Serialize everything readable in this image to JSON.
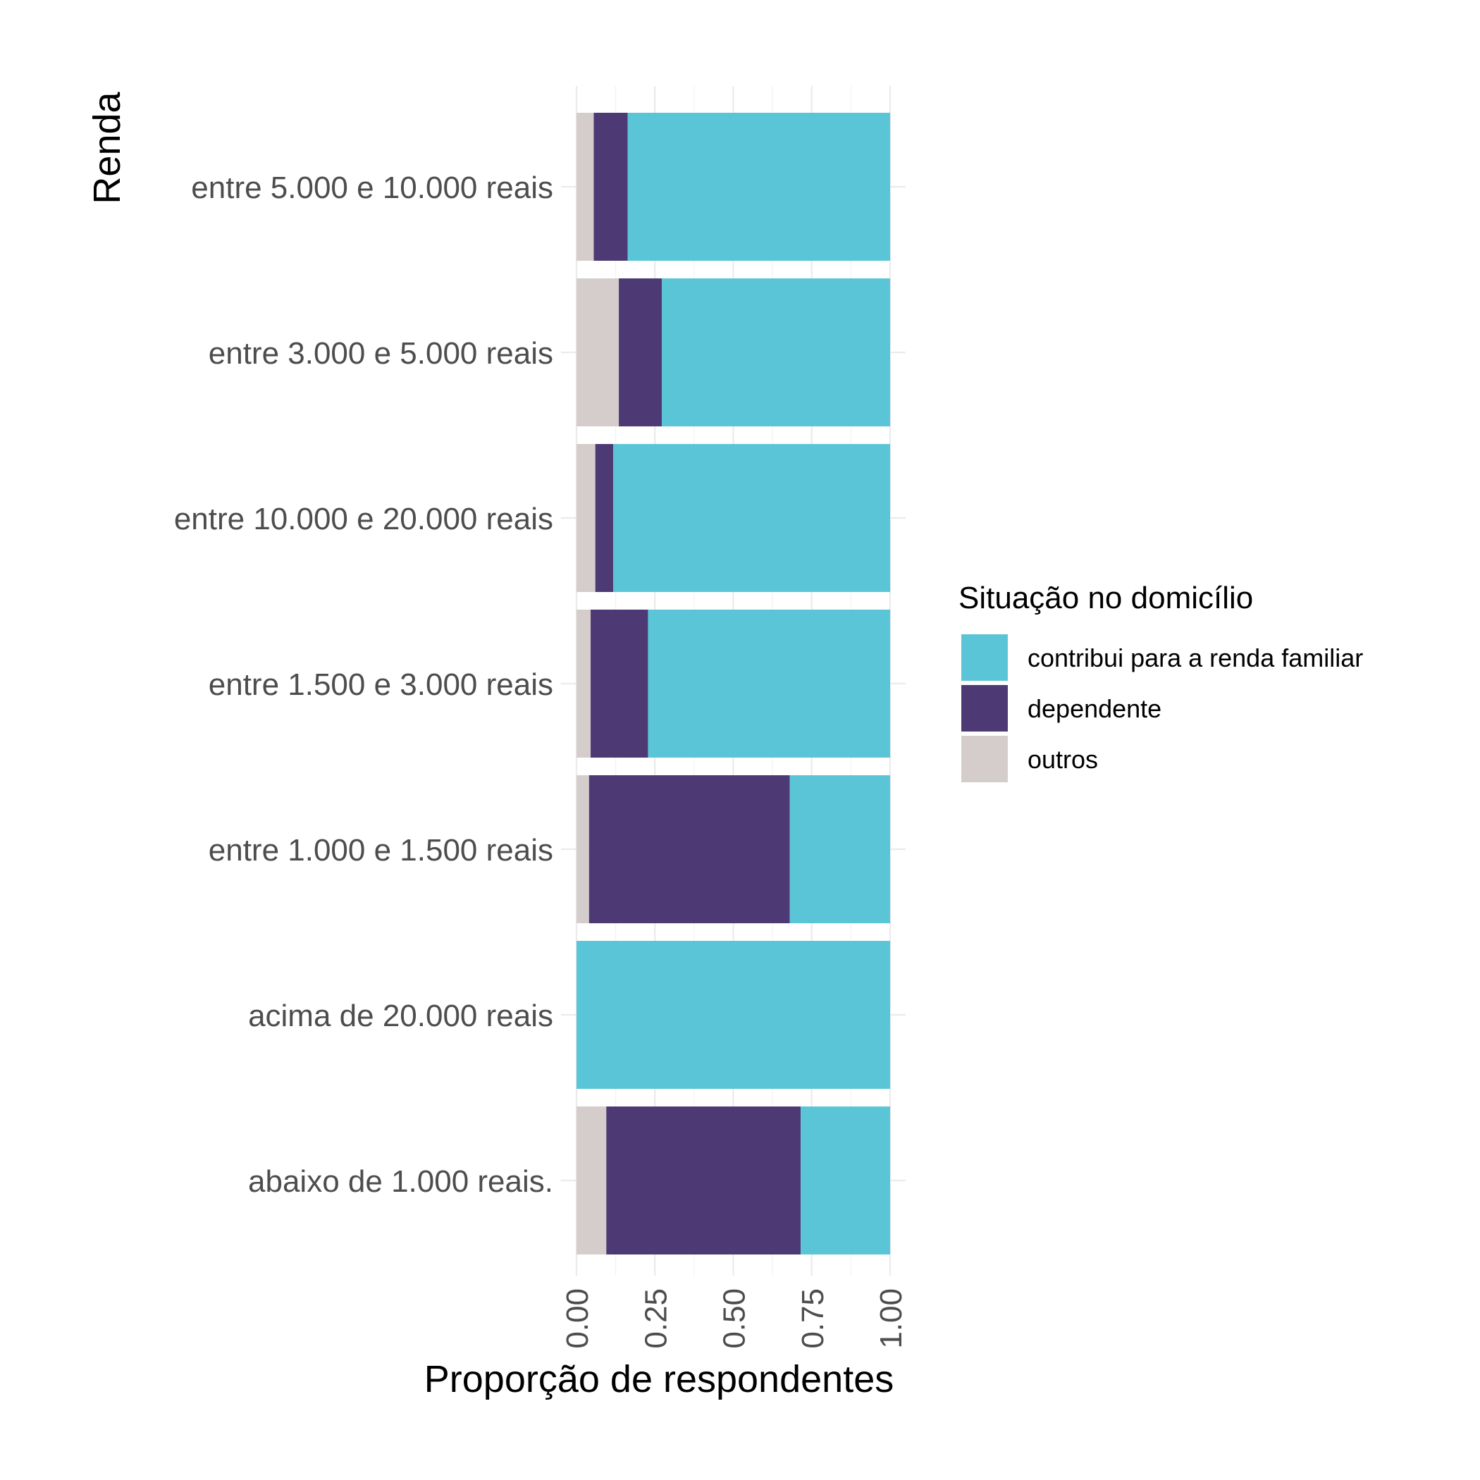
{
  "chart_data": {
    "type": "bar",
    "orientation": "horizontal",
    "stacked": true,
    "categories": [
      "entre 5.000 e 10.000 reais",
      "entre 3.000 e 5.000 reais",
      "entre 10.000 e 20.000 reais",
      "entre 1.500 e 3.000 reais",
      "entre 1.000 e 1.500 reais",
      "acima de 20.000 reais",
      "abaixo de 1.000 reais."
    ],
    "series": [
      {
        "name": "outros",
        "color": "#d5cdcc",
        "values": [
          0.055,
          0.135,
          0.06,
          0.045,
          0.04,
          0.0,
          0.095
        ]
      },
      {
        "name": "dependente",
        "color": "#4d3a74",
        "values": [
          0.108,
          0.137,
          0.057,
          0.183,
          0.64,
          0.0,
          0.62
        ]
      },
      {
        "name": "contribui para a renda familiar",
        "color": "#5bc5d8",
        "values": [
          0.837,
          0.728,
          0.883,
          0.772,
          0.32,
          1.0,
          0.285
        ]
      }
    ],
    "xlabel": "Proporção de respondentes",
    "ylabel": "Renda",
    "xlim": [
      0,
      1
    ],
    "xticks": [
      "0.00",
      "0.25",
      "0.50",
      "0.75",
      "1.00"
    ],
    "xtick_values": [
      0,
      0.25,
      0.5,
      0.75,
      1
    ],
    "grid": true,
    "legend": {
      "title": "Situação no domicílio",
      "position": "right",
      "entries": [
        "contribui para a renda familiar",
        "dependente",
        "outros"
      ]
    }
  }
}
